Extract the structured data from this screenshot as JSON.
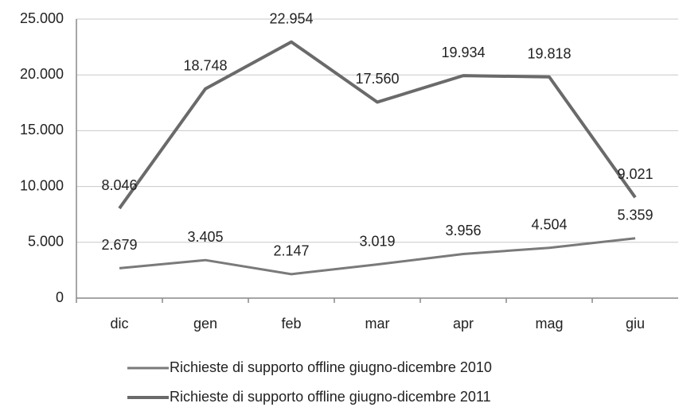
{
  "chart_data": {
    "type": "line",
    "categories": [
      "dic",
      "gen",
      "feb",
      "mar",
      "apr",
      "mag",
      "giu"
    ],
    "series": [
      {
        "name": "Richieste di supporto offline giugno-dicembre 2010",
        "color": "#7a7a7a",
        "values": [
          2679,
          3405,
          2147,
          3019,
          3956,
          4504,
          5359
        ],
        "value_labels": [
          "2.679",
          "3.405",
          "2.147",
          "3.019",
          "3.956",
          "4.504",
          "5.359"
        ]
      },
      {
        "name": "Richieste di supporto offline giugno-dicembre 2011",
        "color": "#6a6a6a",
        "values": [
          8046,
          18748,
          22954,
          17560,
          19934,
          19818,
          9021
        ],
        "value_labels": [
          "8.046",
          "18.748",
          "22.954",
          "17.560",
          "19.934",
          "19.818",
          "9.021"
        ]
      }
    ],
    "ylim": [
      0,
      25000
    ],
    "yticks": [
      0,
      {
        "value": 5000,
        "label": "5.000"
      },
      {
        "value": 10000,
        "label": "10.000"
      },
      {
        "value": 15000,
        "label": "15.000"
      },
      {
        "value": 20000,
        "label": "20.000"
      },
      {
        "value": 25000,
        "label": "25.000"
      }
    ],
    "grid": true,
    "legend": "bottom"
  }
}
